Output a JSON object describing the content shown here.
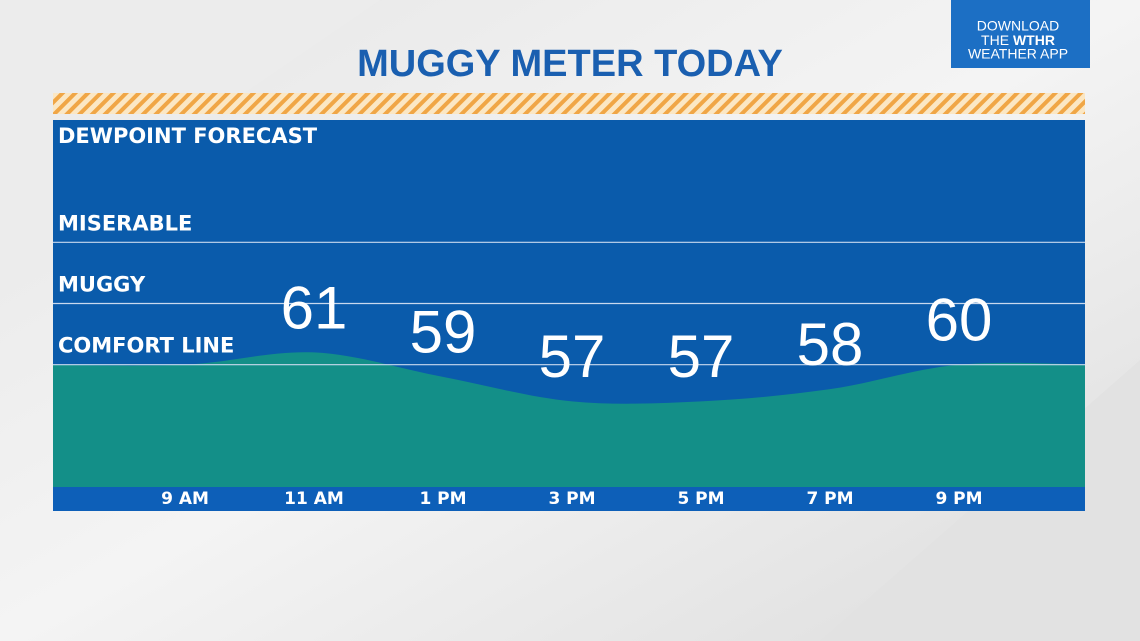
{
  "chart_data": {
    "type": "area",
    "title": "MUGGY METER TODAY",
    "subtitle": "DEWPOINT FORECAST",
    "categories": [
      "9 AM",
      "11 AM",
      "1 PM",
      "3 PM",
      "5 PM",
      "7 PM",
      "9 PM"
    ],
    "values": [
      60,
      61,
      59,
      57,
      57,
      58,
      60
    ],
    "value_labels": [
      null,
      "61",
      "59",
      "57",
      "57",
      "58",
      "60"
    ],
    "color": "#138f88",
    "ylim": [
      50,
      80
    ],
    "yticks": [
      {
        "value": 60,
        "label": "COMFORT LINE"
      },
      {
        "value": 65,
        "label": "MUGGY"
      },
      {
        "value": 70,
        "label": "MISERABLE"
      }
    ],
    "grid": true
  },
  "badge": {
    "line1": "DOWNLOAD",
    "line2": "THE",
    "line2_bold": "WTHR",
    "line3": "WEATHER APP"
  }
}
